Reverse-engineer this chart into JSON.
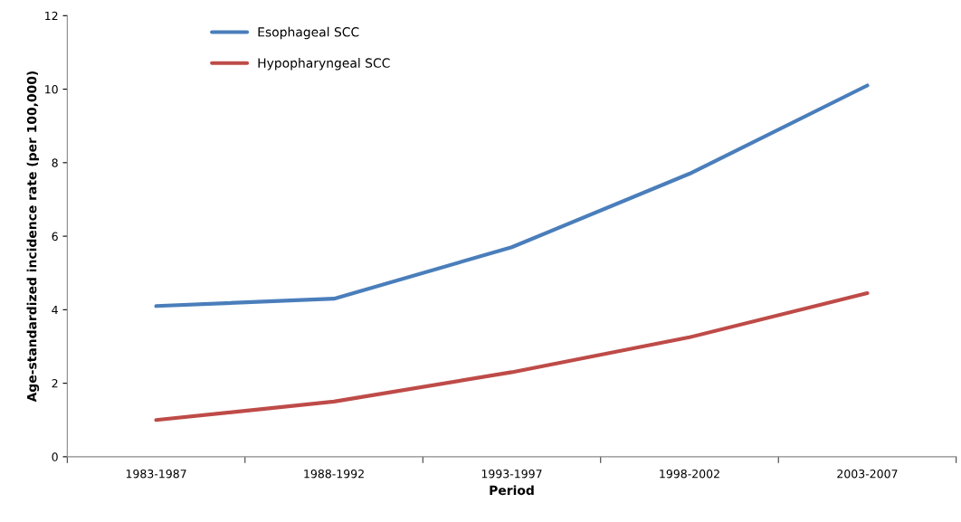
{
  "chart_data": {
    "type": "line",
    "xlabel": "Period",
    "ylabel": "Age-standardized incidence rate (per 100,000)",
    "categories": [
      "1983-1987",
      "1988-1992",
      "1993-1997",
      "1998-2002",
      "2003-2007"
    ],
    "series": [
      {
        "name": "Esophageal SCC",
        "color": "#4a7ebb",
        "values": [
          4.1,
          4.3,
          5.7,
          7.7,
          10.1
        ]
      },
      {
        "name": "Hypopharyngeal SCC",
        "color": "#be4b48",
        "values": [
          1.0,
          1.5,
          2.3,
          3.25,
          4.45
        ]
      }
    ],
    "ylim": [
      0,
      12
    ],
    "yticks": [
      0,
      2,
      4,
      6,
      8,
      10,
      12
    ],
    "grid": false,
    "legend": "top left",
    "marker": "none",
    "line_style": "solid"
  }
}
